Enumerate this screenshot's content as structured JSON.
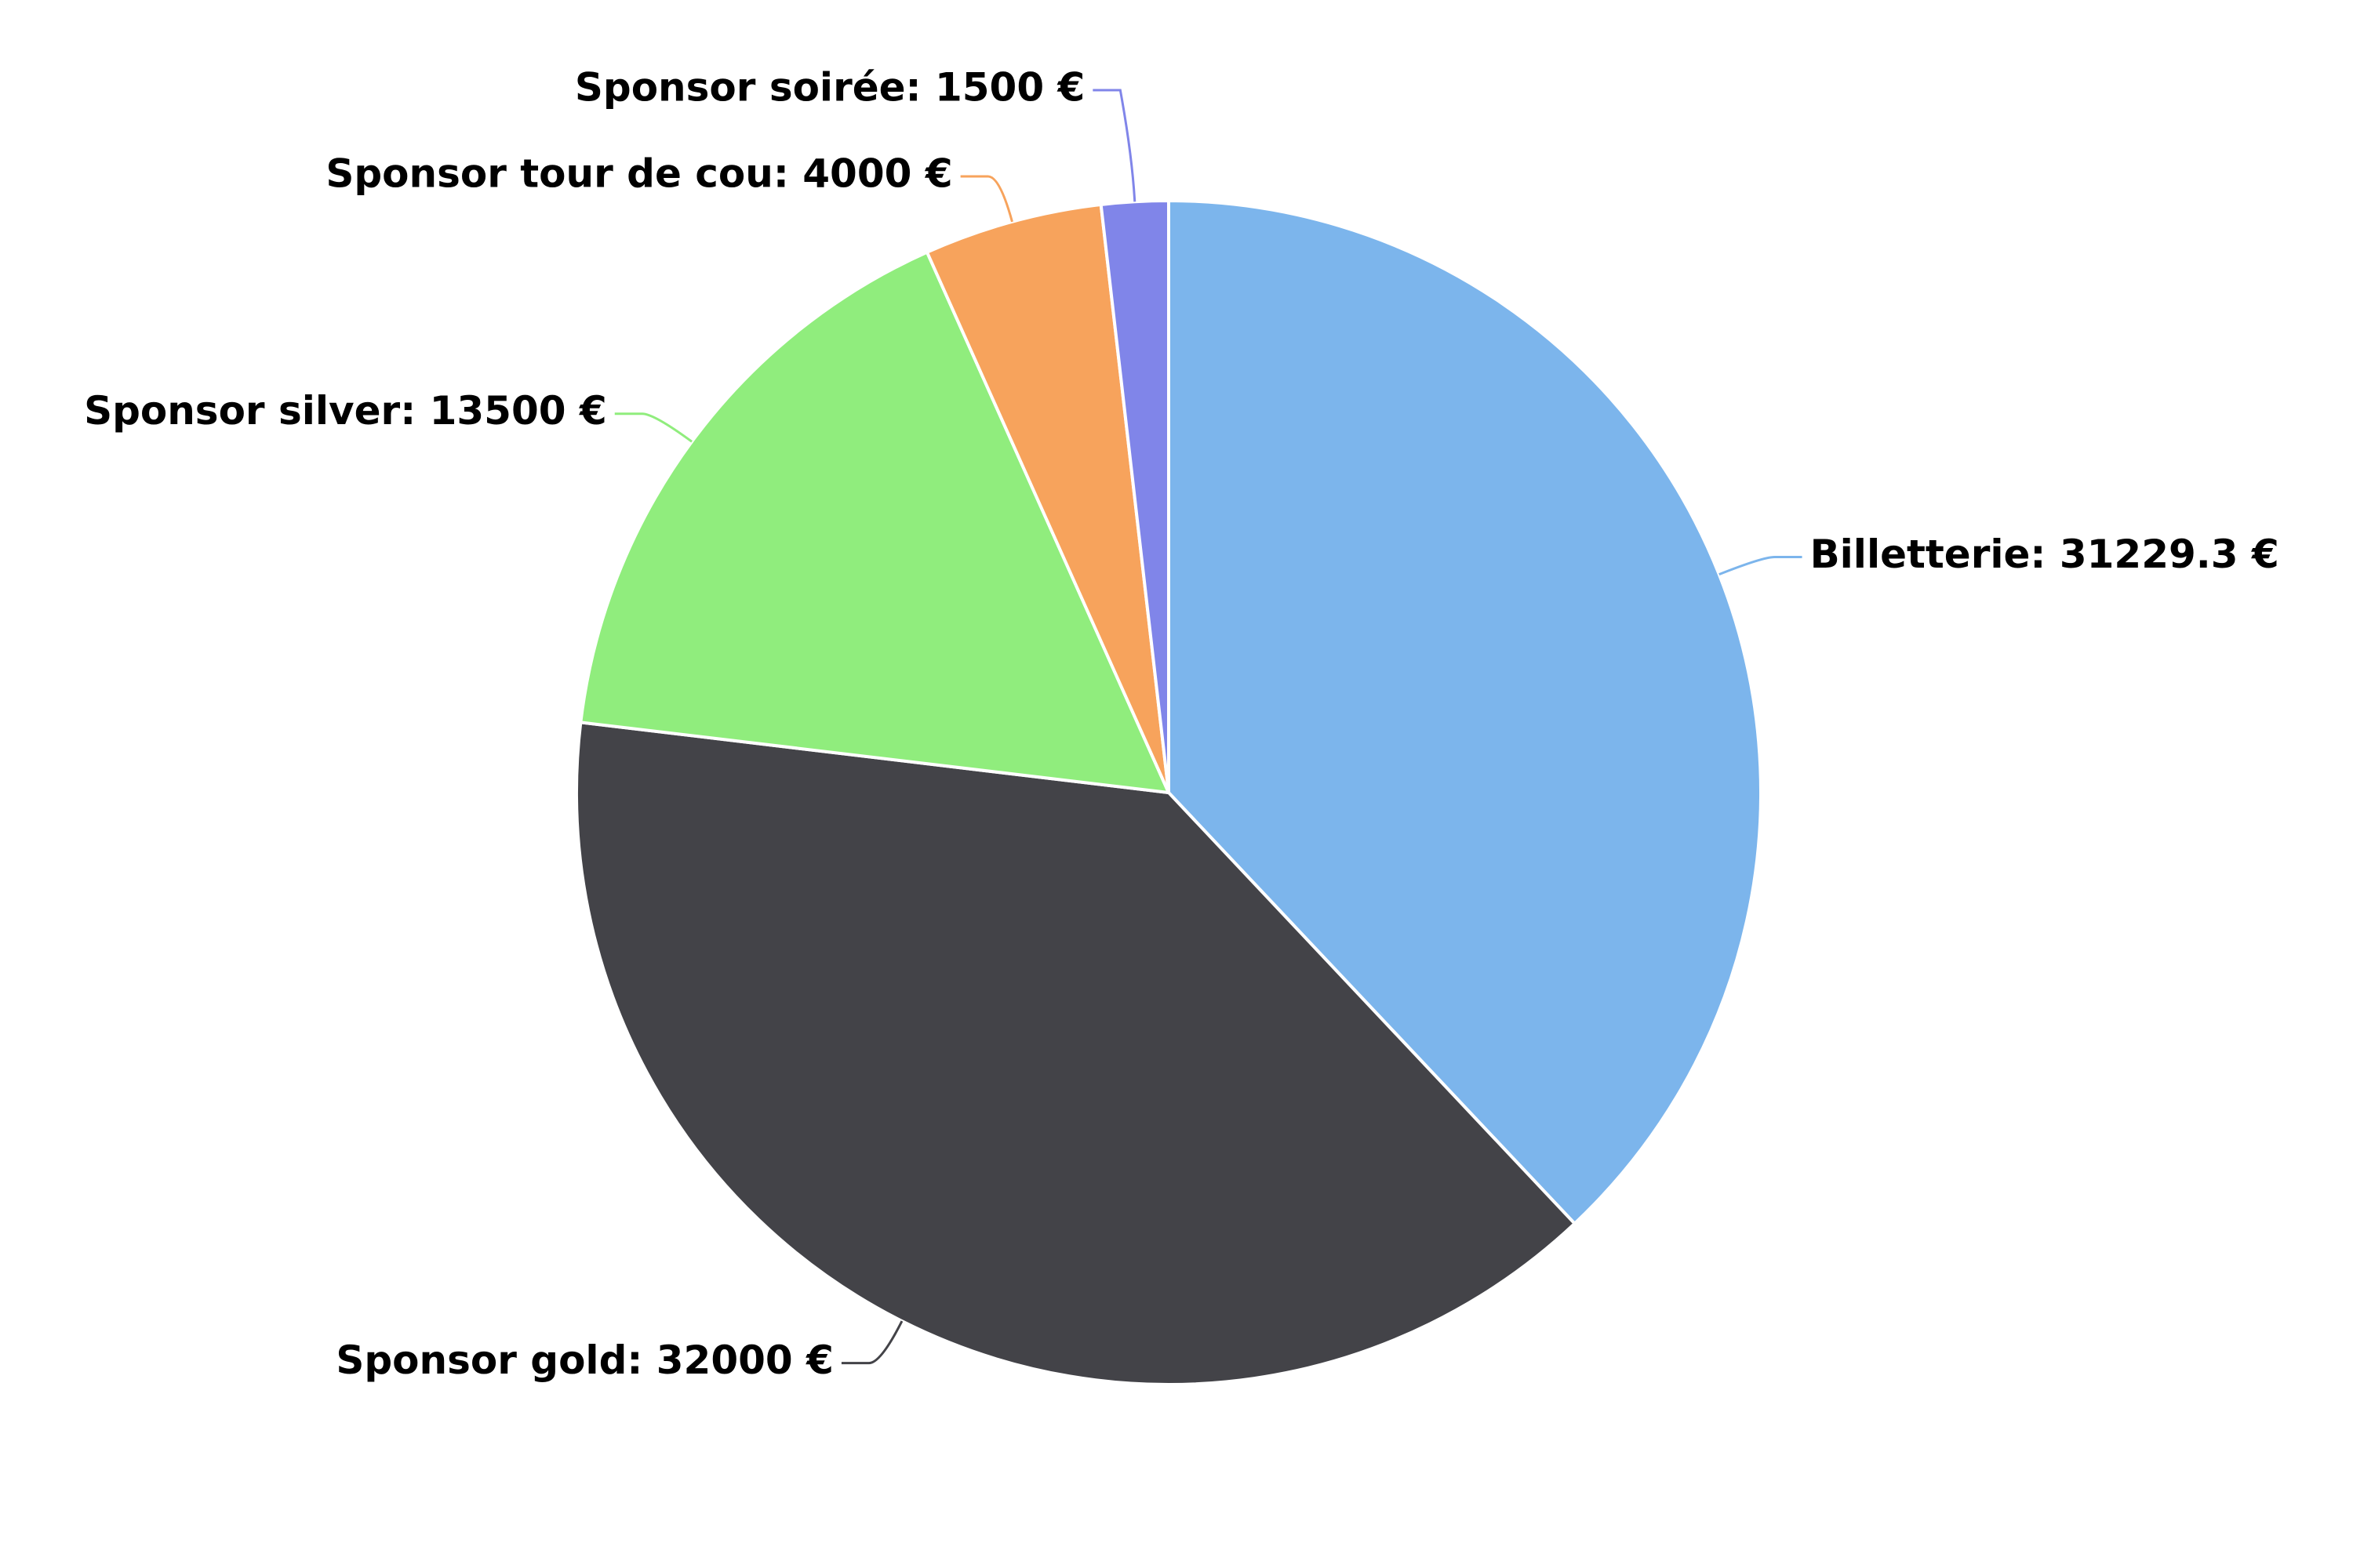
{
  "chart_data": {
    "type": "pie",
    "title": "",
    "unit": "€",
    "legend": "none",
    "slices": [
      {
        "label": "Billetterie",
        "value": 31229.3,
        "color": "#7cb5ec"
      },
      {
        "label": "Sponsor gold",
        "value": 32000,
        "color": "#434348"
      },
      {
        "label": "Sponsor silver",
        "value": 13500,
        "color": "#90ed7d"
      },
      {
        "label": "Sponsor tour de cou",
        "value": 4000,
        "color": "#f7a35c"
      },
      {
        "label": "Sponsor soirée",
        "value": 1500,
        "color": "#8085e9"
      }
    ]
  }
}
